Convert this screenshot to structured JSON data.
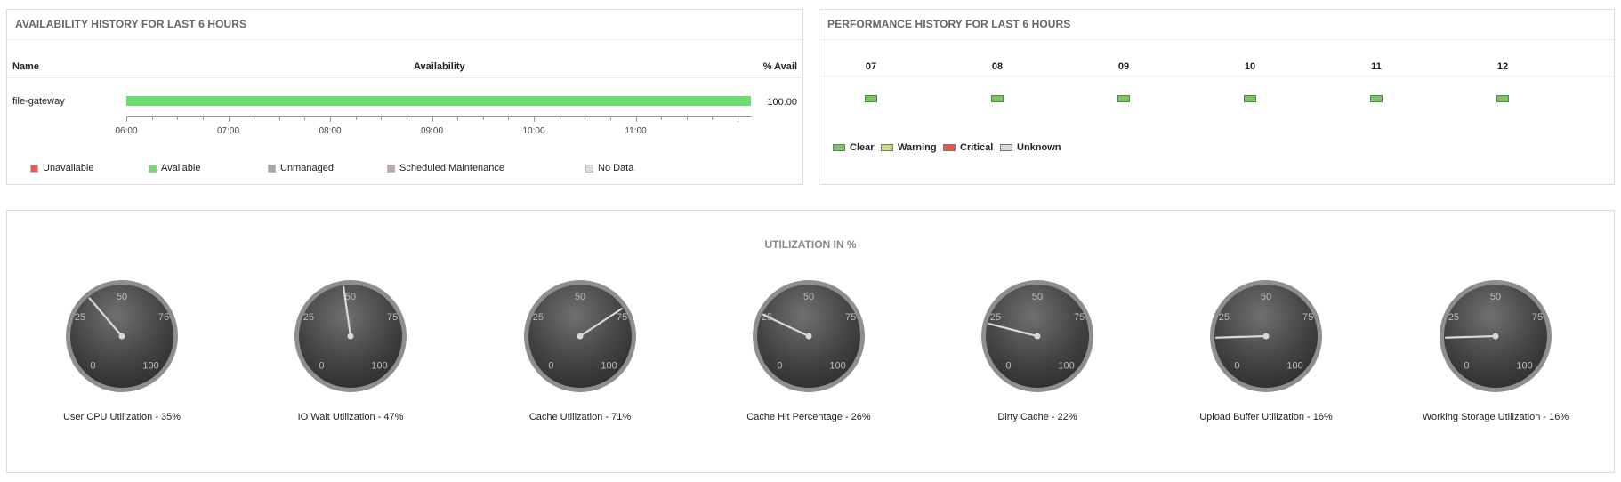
{
  "availability": {
    "title": "AVAILABILITY HISTORY FOR LAST 6 HOURS",
    "col_name": "Name",
    "col_availability": "Availability",
    "col_pct": "% Avail",
    "rows": [
      {
        "name": "file-gateway",
        "percent": "100.00",
        "fill_fraction": 1.0
      }
    ],
    "axis_labels": [
      "06:00",
      "07:00",
      "08:00",
      "09:00",
      "10:00",
      "11:00"
    ],
    "legend": [
      {
        "label": "Unavailable",
        "color": "#f0594f"
      },
      {
        "label": "Available",
        "color": "#6fdc6f"
      },
      {
        "label": "Unmanaged",
        "color": "#a6a6a6"
      },
      {
        "label": "Scheduled Maintenance",
        "color": "#b9a9ad"
      },
      {
        "label": "No Data",
        "color": "#dcdcdc"
      }
    ]
  },
  "performance": {
    "title": "PERFORMANCE HISTORY FOR LAST 6 HOURS",
    "hours": [
      "07",
      "08",
      "09",
      "10",
      "11",
      "12"
    ],
    "status_color": "#7ec46a",
    "legend": [
      {
        "label": "Clear",
        "color": "#7ec46a"
      },
      {
        "label": "Warning",
        "color": "#c6df7a"
      },
      {
        "label": "Critical",
        "color": "#e3584a"
      },
      {
        "label": "Unknown",
        "color": "#d9d9d9"
      }
    ]
  },
  "utilization": {
    "title": "UTILIZATION IN %",
    "scale_labels": [
      "0",
      "25",
      "50",
      "75",
      "100"
    ],
    "gauges": [
      {
        "label": "User CPU Utilization - 35%",
        "value": 35
      },
      {
        "label": "IO Wait Utilization - 47%",
        "value": 47
      },
      {
        "label": "Cache Utilization - 71%",
        "value": 71
      },
      {
        "label": "Cache Hit Percentage - 26%",
        "value": 26
      },
      {
        "label": "Dirty Cache - 22%",
        "value": 22
      },
      {
        "label": "Upload Buffer Utilization - 16%",
        "value": 16
      },
      {
        "label": "Working Storage Utilization - 16%",
        "value": 16
      }
    ]
  }
}
